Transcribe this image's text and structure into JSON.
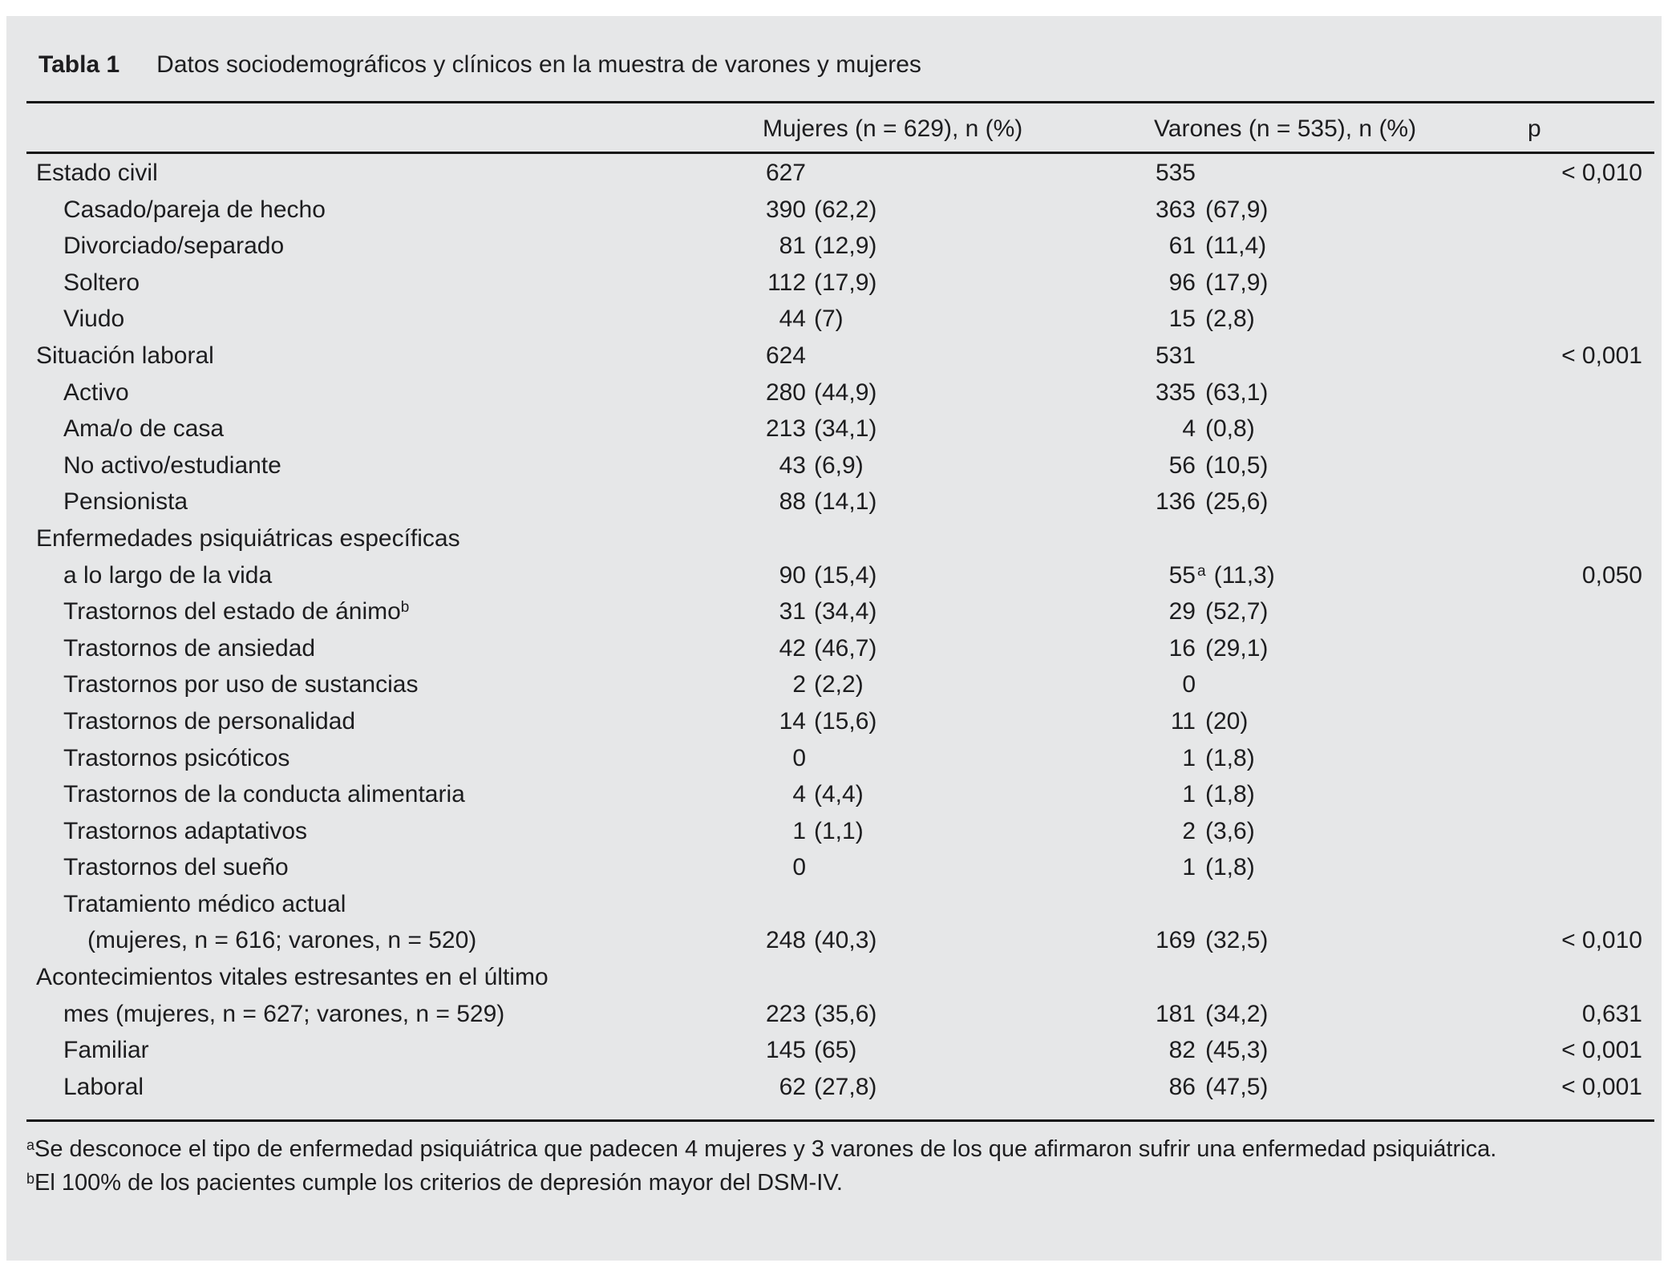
{
  "title": {
    "label": "Tabla 1",
    "text": "Datos sociodemográficos y clínicos en la muestra de varones y mujeres"
  },
  "header": {
    "mujeres": "Mujeres (n = 629), n (%)",
    "varones": "Varones (n = 535), n (%)",
    "p": "p"
  },
  "rows": [
    {
      "label": "Estado civil",
      "indent": 0,
      "m_n": "627",
      "v_n": "535",
      "p": "< 0,010"
    },
    {
      "label": "Casado/pareja de hecho",
      "indent": 1,
      "m_n": "390",
      "m_pct": "(62,2)",
      "v_n": "363",
      "v_pct": "(67,9)"
    },
    {
      "label": "Divorciado/separado",
      "indent": 1,
      "m_n": "81",
      "m_pct": "(12,9)",
      "v_n": "61",
      "v_pct": "(11,4)"
    },
    {
      "label": "Soltero",
      "indent": 1,
      "m_n": "112",
      "m_pct": "(17,9)",
      "v_n": "96",
      "v_pct": "(17,9)"
    },
    {
      "label": "Viudo",
      "indent": 1,
      "m_n": "44",
      "m_pct": "(7)",
      "v_n": "15",
      "v_pct": "(2,8)"
    },
    {
      "label": "Situación laboral",
      "indent": 0,
      "m_n": "624",
      "v_n": "531",
      "p": "< 0,001"
    },
    {
      "label": "Activo",
      "indent": 1,
      "m_n": "280",
      "m_pct": "(44,9)",
      "v_n": "335",
      "v_pct": "(63,1)"
    },
    {
      "label": "Ama/o de casa",
      "indent": 1,
      "m_n": "213",
      "m_pct": "(34,1)",
      "v_n": "4",
      "v_pct": "(0,8)"
    },
    {
      "label": "No activo/estudiante",
      "indent": 1,
      "m_n": "43",
      "m_pct": "(6,9)",
      "v_n": "56",
      "v_pct": "(10,5)"
    },
    {
      "label": "Pensionista",
      "indent": 1,
      "m_n": "88",
      "m_pct": "(14,1)",
      "v_n": "136",
      "v_pct": "(25,6)"
    },
    {
      "label": "Enfermedades psiquiátricas específicas",
      "indent": 0
    },
    {
      "label": "a lo largo de la vida",
      "indent": 1,
      "m_n": "90",
      "m_pct": "(15,4)",
      "v_n": "55",
      "v_sup": "a",
      "v_pct": "(11,3)",
      "p": "0,050"
    },
    {
      "label": "Trastornos del estado de ánimo",
      "label_sup": "b",
      "indent": 1,
      "m_n": "31",
      "m_pct": "(34,4)",
      "v_n": "29",
      "v_pct": "(52,7)"
    },
    {
      "label": "Trastornos de ansiedad",
      "indent": 1,
      "m_n": "42",
      "m_pct": "(46,7)",
      "v_n": "16",
      "v_pct": "(29,1)"
    },
    {
      "label": "Trastornos por uso de sustancias",
      "indent": 1,
      "m_n": "2",
      "m_pct": "(2,2)",
      "v_n": "0"
    },
    {
      "label": "Trastornos de personalidad",
      "indent": 1,
      "m_n": "14",
      "m_pct": "(15,6)",
      "v_n": "11",
      "v_pct": "(20)"
    },
    {
      "label": "Trastornos psicóticos",
      "indent": 1,
      "m_n": "0",
      "v_n": "1",
      "v_pct": "(1,8)"
    },
    {
      "label": "Trastornos de la conducta alimentaria",
      "indent": 1,
      "m_n": "4",
      "m_pct": "(4,4)",
      "v_n": "1",
      "v_pct": "(1,8)"
    },
    {
      "label": "Trastornos adaptativos",
      "indent": 1,
      "m_n": "1",
      "m_pct": "(1,1)",
      "v_n": "2",
      "v_pct": "(3,6)"
    },
    {
      "label": "Trastornos del sueño",
      "indent": 1,
      "m_n": "0",
      "v_n": "1",
      "v_pct": "(1,8)"
    },
    {
      "label": "Tratamiento médico actual",
      "indent": 1
    },
    {
      "label": "(mujeres, n = 616; varones, n = 520)",
      "indent": 2,
      "m_n": "248",
      "m_pct": "(40,3)",
      "v_n": "169",
      "v_pct": "(32,5)",
      "p": "< 0,010"
    },
    {
      "label": "Acontecimientos vitales estresantes en el último",
      "indent": 0
    },
    {
      "label": "mes (mujeres, n = 627; varones, n = 529)",
      "indent": 1,
      "m_n": "223",
      "m_pct": "(35,6)",
      "v_n": "181",
      "v_pct": "(34,2)",
      "p": "0,631"
    },
    {
      "label": "Familiar",
      "indent": 1,
      "m_n": "145",
      "m_pct": "(65)",
      "v_n": "82",
      "v_pct": "(45,3)",
      "p": "< 0,001"
    },
    {
      "label": "Laboral",
      "indent": 1,
      "m_n": "62",
      "m_pct": "(27,8)",
      "v_n": "86",
      "v_pct": "(47,5)",
      "p": "< 0,001"
    }
  ],
  "footnotes": [
    {
      "marker": "a",
      "text": "Se desconoce el tipo de enfermedad psiquiátrica que padecen 4 mujeres y 3 varones de los que afirmaron sufrir una enfermedad psiquiátrica."
    },
    {
      "marker": "b",
      "text": "El 100% de los pacientes cumple los criterios de depresión mayor del DSM-IV."
    }
  ]
}
